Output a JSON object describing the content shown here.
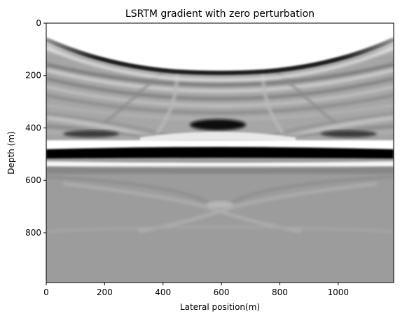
{
  "chart_data": {
    "type": "heatmap",
    "title": "LSRTM gradient with zero perturbation",
    "xlabel": "Lateral position(m)",
    "ylabel": "Depth (m)",
    "xlim": [
      0,
      1190
    ],
    "ylim": [
      990,
      0
    ],
    "y_inverted": true,
    "colormap": "gray",
    "grid": false,
    "x_ticks": [
      "0",
      "200",
      "400",
      "600",
      "800",
      "1000"
    ],
    "x_tick_values": [
      0,
      200,
      400,
      600,
      800,
      1000
    ],
    "y_ticks": [
      "0",
      "200",
      "400",
      "600",
      "800"
    ],
    "y_tick_values": [
      0,
      200,
      400,
      600,
      800
    ],
    "features": [
      {
        "kind": "bright-band",
        "depth": [
          480,
          520
        ],
        "value": "white"
      },
      {
        "kind": "dark-band",
        "depth": [
          495,
          535
        ],
        "value": "black"
      },
      {
        "kind": "dark-blob",
        "x": 590,
        "depth": 395
      },
      {
        "kind": "bright-near-surface-arc",
        "x": [
          0,
          1190
        ],
        "depth": [
          0,
          95
        ]
      },
      {
        "kind": "diffraction-crossing",
        "x": 600,
        "depth": 690
      }
    ]
  }
}
